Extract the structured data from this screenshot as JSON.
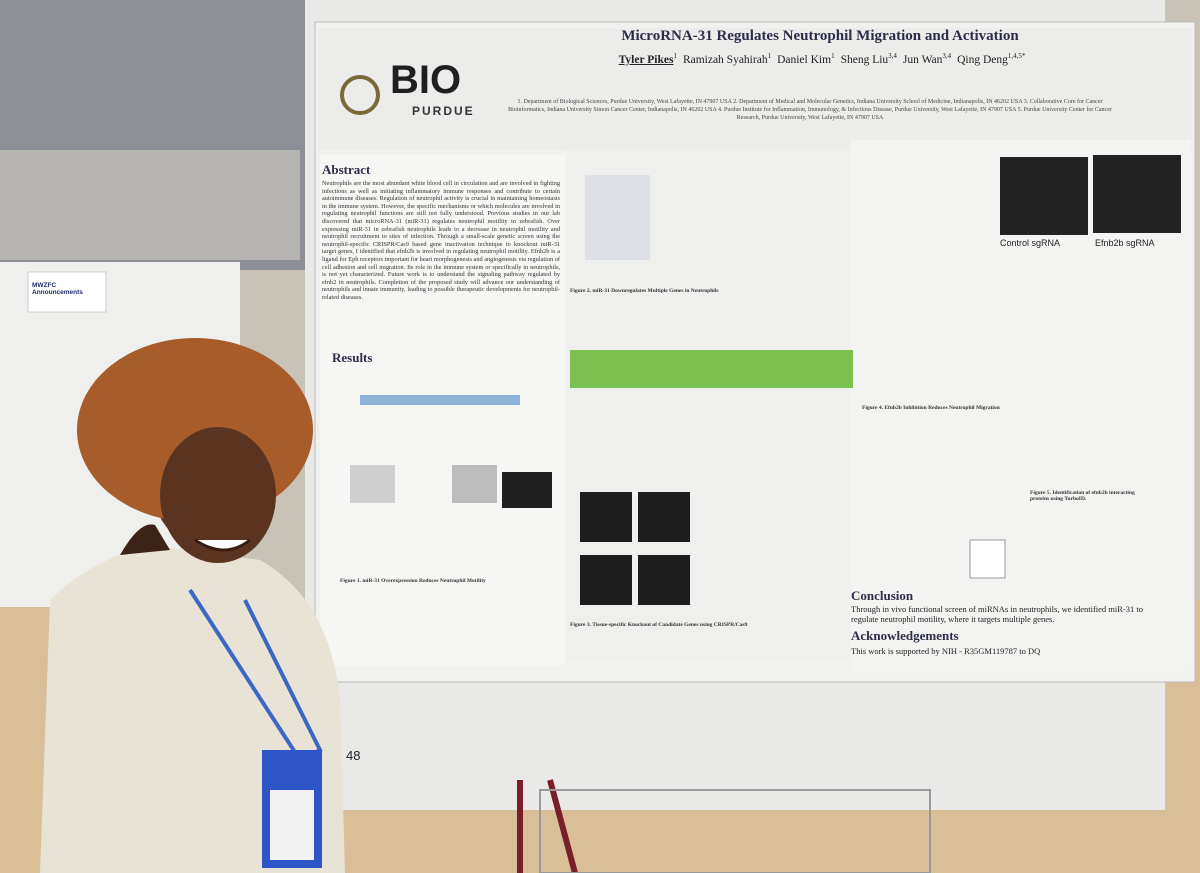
{
  "sign": "MWZFC Announcements",
  "badge_number": "48",
  "poster": {
    "logo": {
      "mark": "BIO",
      "sub": "PURDUE"
    },
    "title": "MicroRNA-31 Regulates Neutrophil Migration and Activation",
    "authors": [
      {
        "name": "Tyler Pikes",
        "sup": "1"
      },
      {
        "name": "Ramizah Syahirah",
        "sup": "1"
      },
      {
        "name": "Daniel Kim",
        "sup": "1"
      },
      {
        "name": "Sheng Liu",
        "sup": "3,4"
      },
      {
        "name": "Jun Wan",
        "sup": "3,4"
      },
      {
        "name": "Qing Deng",
        "sup": "1,4,5*"
      }
    ],
    "affiliations": "1. Department of Biological Sciences, Purdue University, West Lafayette, IN 47907 USA 2. Department of Medical and Molecular Genetics, Indiana University School of Medicine, Indianapolis, IN 46202 USA 3. Collaborative Core for Cancer Bioinformatics, Indiana University Simon Cancer Center, Indianapolis, IN 46202 USA 4. Purdue Institute for Inflammation, Immunology, & Infectious Disease, Purdue University, West Lafayette, IN 47907 USA 5. Purdue University Center for Cancer Research, Purdue University, West Lafayette, IN 47907 USA",
    "abstract": {
      "heading": "Abstract",
      "text": "Neutrophils are the most abundant white blood cell in circulation and are involved in fighting infections as well as initiating inflammatory immune responses and contribute to certain autoimmune diseases. Regulation of neutrophil activity is crucial in maintaining homeostasis in the immune system. However, the specific mechanisms or which molecules are involved in regulating neutrophil functions are still not fully understood. Previous studies in our lab discovered that microRNA-31 (miR-31) regulates neutrophil motility in zebrafish. Over expressing miR-31 in zebrafish neutrophils leads to a decrease in neutrophil motility and neutrophil recruitment to sites of infection. Through a small-scale genetic screen using the neutrophil-specific CRISPR/Cas9 based gene inactivation technique to knockout miR-31 target genes, I identified that efnb2b is involved in regulating neutrophil motility. Efnb2b is a ligand for Eph receptors important for heart morphogenesis and angiogenesis via regulation of cell adhesion and cell migration. Its role in the immune system or specifically in neutrophils, is not yet characterized. Future work is to understand the signaling pathway regulated by efnb2 in neutrophils. Completion of the proposed study will advance our understanding of neutrophils and innate immunity, leading to possible therapeutic developments for neutrophil-related diseases."
    },
    "results_heading": "Results",
    "figures": [
      "Figure 1. miR-31 Overexpression Reduces Neutrophil Motility",
      "Figure 2. miR-31 Downregulates Multiple Genes in Neutrophils",
      "Figure 3. Tissue-specific Knockout of Candidate Genes using CRISPR/Cas9",
      "Figure 4. Efnb2b Inhibition Reduces Neutrophil Migration",
      "Figure 5. Identification of efnb2b interacting proteins using TurboID."
    ],
    "panel_labels": [
      "Control sgRNA",
      "Efnb2b sgRNA"
    ],
    "conclusion": {
      "heading": "Conclusion",
      "text": "Through in vivo functional screen of miRNAs in neutrophils, we identified miR-31 to regulate neutrophil motility, where it targets multiple genes."
    },
    "acknowledgements": {
      "heading": "Acknowledgements",
      "text": "This work is supported by NIH - R35GM119787 to DQ"
    }
  }
}
